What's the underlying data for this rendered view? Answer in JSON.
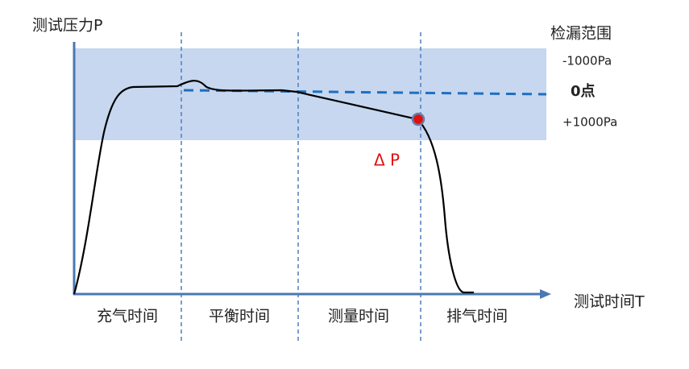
{
  "axes": {
    "y_label": "测试压力P",
    "x_label": "测试时间T"
  },
  "band": {
    "title": "检漏范围",
    "upper": "-1000Pa",
    "zero": "0点",
    "lower": "+1000Pa"
  },
  "delta_label": "Δ P",
  "phases": [
    "充气时间",
    "平衡时间",
    "测量时间",
    "排气时间"
  ]
}
